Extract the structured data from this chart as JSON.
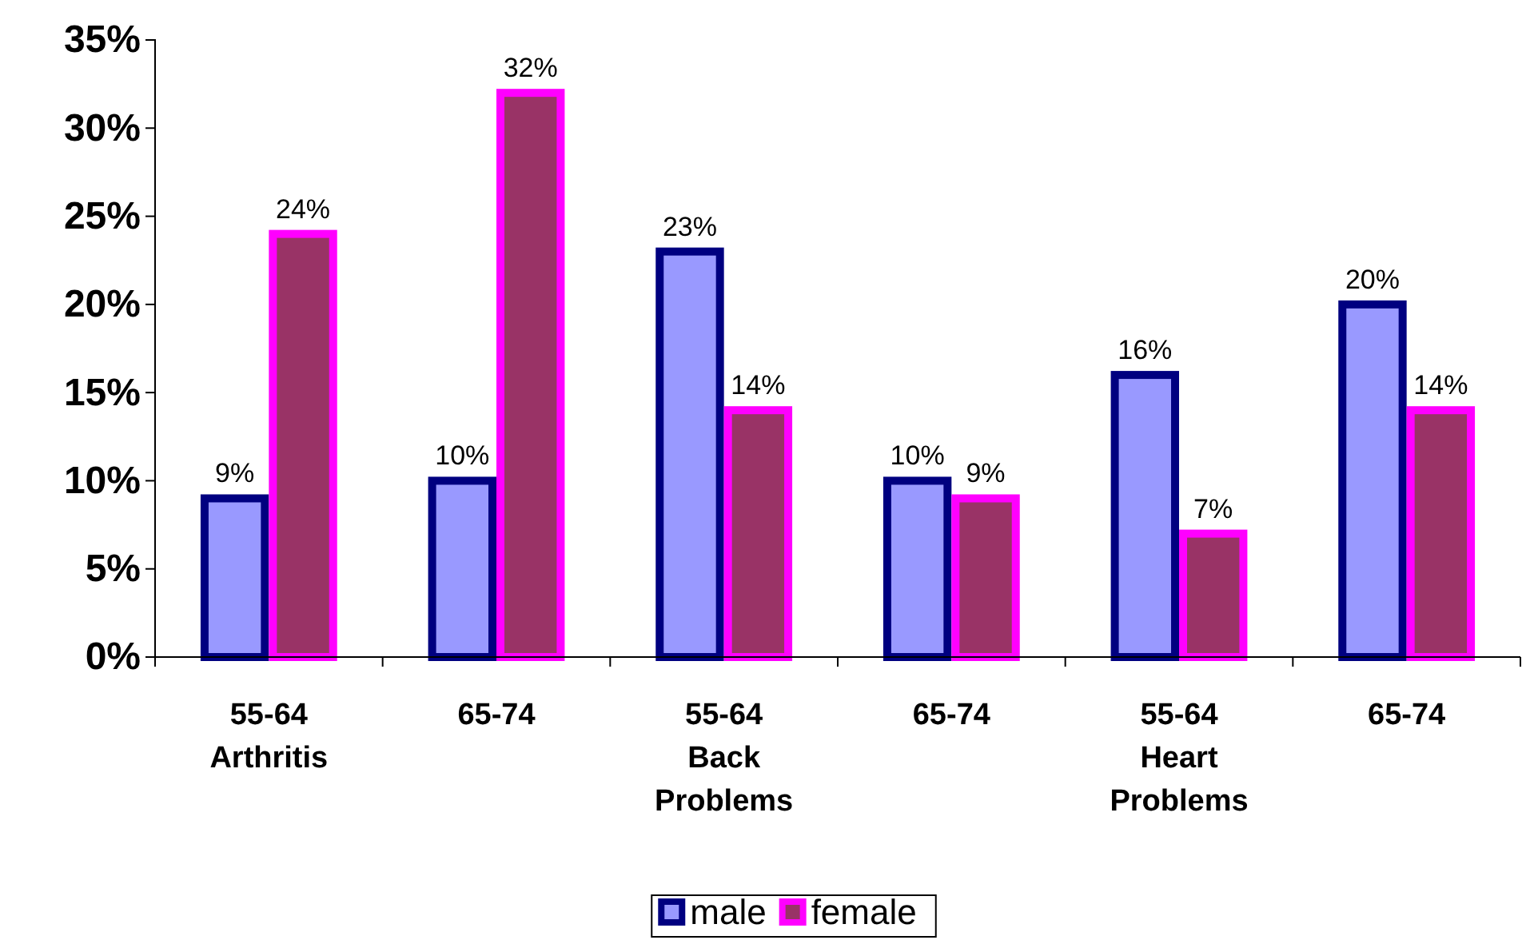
{
  "chart_data": {
    "type": "bar",
    "categories": [
      "55-64\nArthritis",
      "65-74",
      "55-64\nBack\nProblems",
      "65-74",
      "55-64\nHeart\nProblems",
      "65-74"
    ],
    "series": [
      {
        "name": "male",
        "color": "#9999ff",
        "values": [
          9,
          10,
          23,
          10,
          16,
          20
        ],
        "value_labels": [
          "9%",
          "10%",
          "23%",
          "10%",
          "16%",
          "20%"
        ]
      },
      {
        "name": "female",
        "color": "#993366",
        "values": [
          24,
          32,
          14,
          9,
          7,
          14
        ],
        "value_labels": [
          "24%",
          "32%",
          "14%",
          "9%",
          "7%",
          "14%"
        ]
      }
    ],
    "ylim": [
      0,
      35
    ],
    "yticks": [
      {
        "value": 0,
        "label": "0%"
      },
      {
        "value": 5,
        "label": "5%"
      },
      {
        "value": 10,
        "label": "10%"
      },
      {
        "value": 15,
        "label": "15%"
      },
      {
        "value": 20,
        "label": "20%"
      },
      {
        "value": 25,
        "label": "25%"
      },
      {
        "value": 30,
        "label": "30%"
      },
      {
        "value": 35,
        "label": "35%"
      }
    ],
    "grid": false,
    "legend": "bottom"
  }
}
